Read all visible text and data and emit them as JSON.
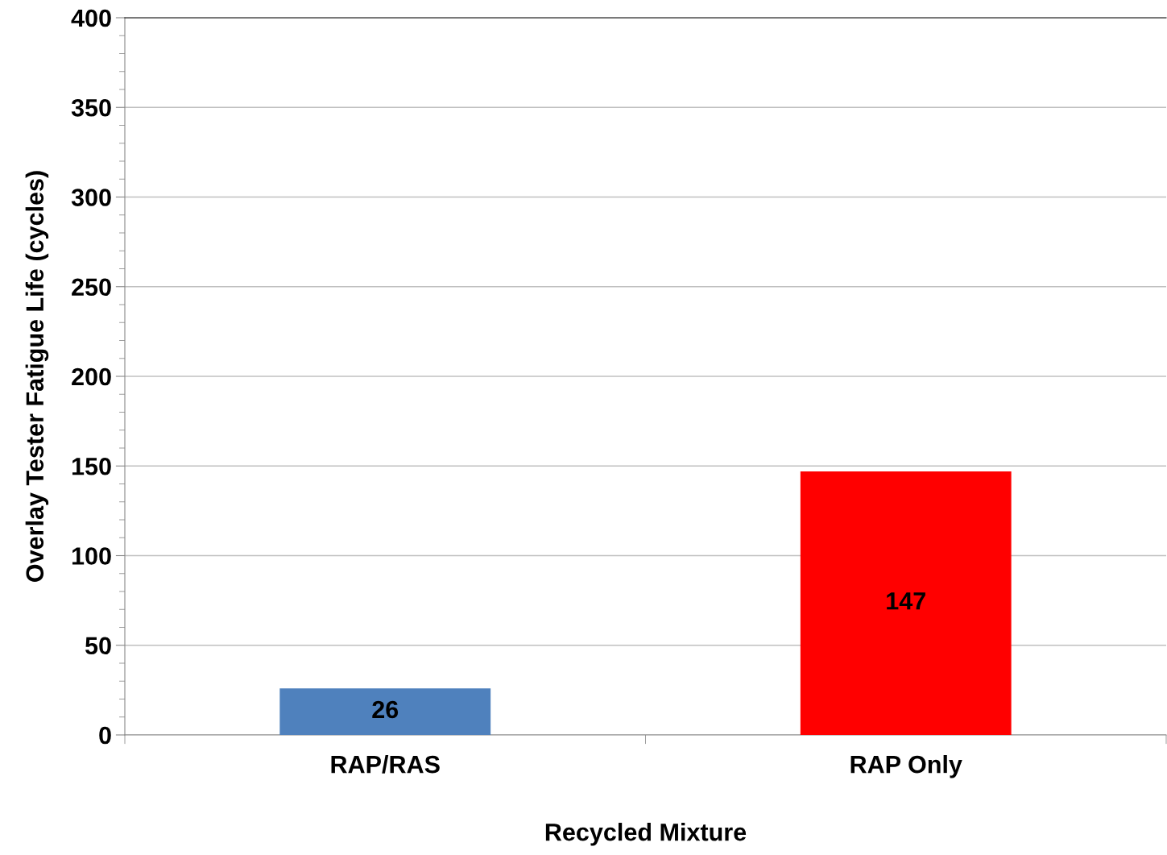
{
  "chart_data": {
    "type": "bar",
    "xlabel": "Recycled Mixture",
    "ylabel": "Overlay Tester Fatigue Life (cycles)",
    "categories": [
      "RAP/RAS",
      "RAP Only"
    ],
    "values": [
      26,
      147
    ],
    "colors": [
      "#4f81bd",
      "#ff0000"
    ],
    "ylim": [
      0,
      400
    ],
    "yticks": [
      0,
      50,
      100,
      150,
      200,
      250,
      300,
      350,
      400
    ],
    "grid": "y",
    "data_labels": true
  }
}
